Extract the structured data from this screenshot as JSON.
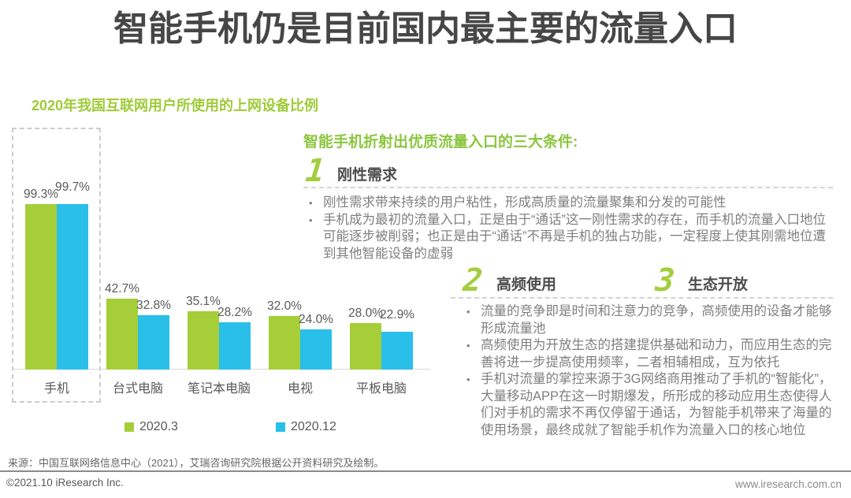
{
  "slide": {
    "title": "智能手机仍是目前国内最主要的流量入口",
    "source_note": "来源：中国互联网络信息中心（2021），艾瑞咨询研究院根据公开资料研究及绘制。",
    "footer": {
      "copyright": "©2021.10 iResearch Inc.",
      "website": "www.iresearch.com.cn"
    }
  },
  "chart_heading": "2020年我国互联网用户所使用的上网设备比例",
  "chart_data": {
    "type": "bar",
    "title": "2020年我国互联网用户所使用的上网设备比例",
    "categories": [
      "手机",
      "台式电脑",
      "笔记本电脑",
      "电视",
      "平板电脑"
    ],
    "series": [
      {
        "name": "2020.3",
        "color": "#a5ce39",
        "values": [
          99.3,
          42.7,
          35.1,
          32.0,
          28.0
        ]
      },
      {
        "name": "2020.12",
        "color": "#29bfe8",
        "values": [
          99.7,
          32.8,
          28.2,
          24.0,
          22.9
        ]
      }
    ],
    "value_suffix": "%",
    "ylim": [
      0,
      100
    ],
    "grid": false,
    "axis_labels_hidden": true,
    "legend_position": "bottom",
    "highlight": "first category (手机) outlined with dashed box"
  },
  "panel": {
    "heading": "智能手机折射出优质流量入口的三大条件:",
    "sections": [
      {
        "number": "1",
        "title": "刚性需求"
      },
      {
        "number": "2",
        "title": "高频使用"
      },
      {
        "number": "3",
        "title": "生态开放"
      }
    ],
    "section1_bullets": [
      "刚性需求带来持续的用户粘性，形成高质量的流量聚集和分发的可能性",
      "手机成为最初的流量入口，正是由于“通话”这一刚性需求的存在，而手机的流量入口地位可能逐步被削弱；也正是由于“通话”不再是手机的独占功能，一定程度上使其刚需地位遭到其他智能设备的虚弱"
    ],
    "section23_bullets": [
      "流量的竞争即是时间和注意力的竞争，高频使用的设备才能够形成流量池",
      "高频使用为开放生态的搭建提供基础和动力，而应用生态的完善将进一步提高使用频率，二者相辅相成，互为依托",
      "手机对流量的掌控来源于3G网络商用推动了手机的“智能化”，大量移动APP在这一时期爆发，所形成的移动应用生态使得人们对手机的需求不再仅停留于通话，为智能手机带来了海量的使用场景，最终成就了智能手机作为流量入口的核心地位"
    ]
  },
  "colors": {
    "title_text": "#464646",
    "series_green": "#a5ce39",
    "series_blue": "#29bfe8",
    "heading_green": "#8cc63f",
    "body_text_gray": "#7f7f7f",
    "section_title_gray": "#4d4d4d",
    "value_label_gray": "#595959"
  }
}
